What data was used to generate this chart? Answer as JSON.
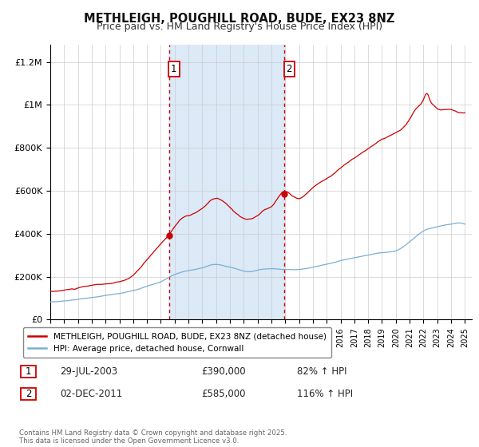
{
  "title": "METHLEIGH, POUGHILL ROAD, BUDE, EX23 8NZ",
  "subtitle": "Price paid vs. HM Land Registry's House Price Index (HPI)",
  "title_fontsize": 10.5,
  "subtitle_fontsize": 9,
  "ylabel_ticks": [
    "£0",
    "£200K",
    "£400K",
    "£600K",
    "£800K",
    "£1M",
    "£1.2M"
  ],
  "ytick_values": [
    0,
    200000,
    400000,
    600000,
    800000,
    1000000,
    1200000
  ],
  "ylim": [
    0,
    1280000
  ],
  "xlim_start": 1995.0,
  "xlim_end": 2025.5,
  "purchase1_x": 2003.58,
  "purchase1_y": 390000,
  "purchase2_x": 2011.92,
  "purchase2_y": 585000,
  "shade_color": "#dce9f7",
  "vline_color": "#cc0000",
  "vline_style": ":",
  "legend_label_red": "METHLEIGH, POUGHILL ROAD, BUDE, EX23 8NZ (detached house)",
  "legend_label_blue": "HPI: Average price, detached house, Cornwall",
  "annotation1_label": "1",
  "annotation2_label": "2",
  "footnote": "Contains HM Land Registry data © Crown copyright and database right 2025.\nThis data is licensed under the Open Government Licence v3.0.",
  "table_row1": [
    "1",
    "29-JUL-2003",
    "£390,000",
    "82% ↑ HPI"
  ],
  "table_row2": [
    "2",
    "02-DEC-2011",
    "£585,000",
    "116% ↑ HPI"
  ],
  "red_line_color": "#cc0000",
  "blue_line_color": "#7aaed4",
  "background_color": "#ffffff",
  "plot_bg_color": "#ffffff",
  "grid_color": "#cccccc"
}
